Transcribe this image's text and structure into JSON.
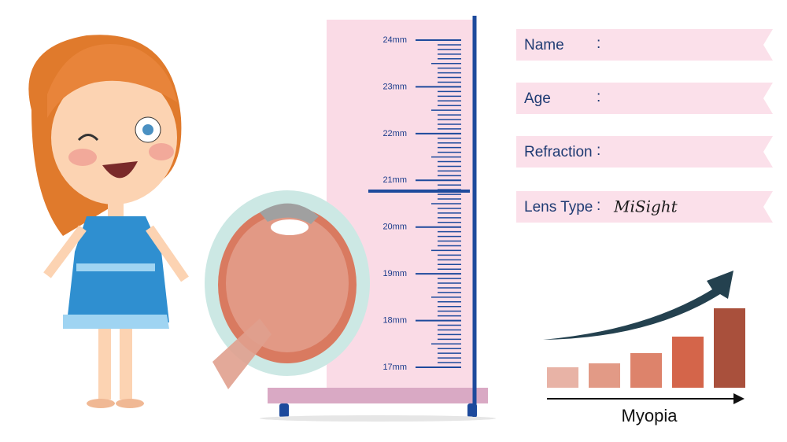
{
  "ruler": {
    "labels": [
      "24mm",
      "23mm",
      "22mm",
      "21mm",
      "20mm",
      "19mm",
      "18mm",
      "17mm"
    ]
  },
  "form": {
    "rows": [
      {
        "label": "Name",
        "separator": ":"
      },
      {
        "label": "Age",
        "separator": ":"
      },
      {
        "label": "Refraction",
        "separator": ":"
      },
      {
        "label": "Lens Type",
        "separator": ":",
        "value": "MiSight"
      }
    ]
  },
  "chart_icon": {
    "label": "Myopia"
  }
}
